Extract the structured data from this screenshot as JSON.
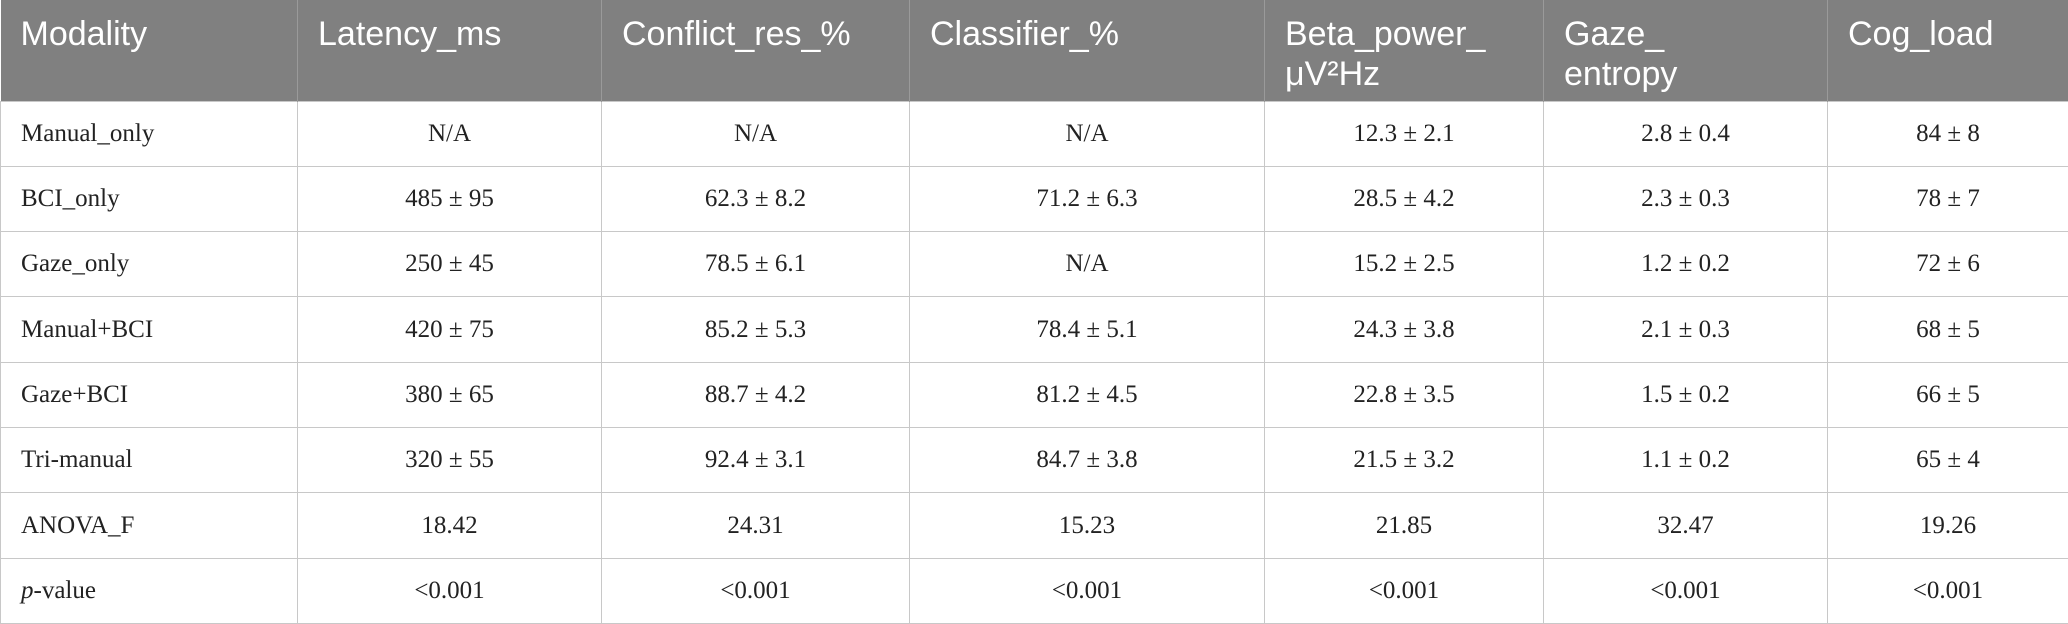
{
  "table": {
    "header": [
      "Modality",
      "Latency_ms",
      "Conflict_res_%",
      "Classifier_%",
      "Beta_power_\nμV²Hz",
      "Gaze_\nentropy",
      "Cog_load"
    ],
    "rows": [
      [
        "Manual_only",
        "N/A",
        "N/A",
        "N/A",
        "12.3 ± 2.1",
        "2.8 ± 0.4",
        "84 ± 8"
      ],
      [
        "BCI_only",
        "485 ± 95",
        "62.3 ± 8.2",
        "71.2 ± 6.3",
        "28.5 ± 4.2",
        "2.3 ± 0.3",
        "78 ± 7"
      ],
      [
        "Gaze_only",
        "250 ± 45",
        "78.5 ± 6.1",
        "N/A",
        "15.2 ± 2.5",
        "1.2 ± 0.2",
        "72 ± 6"
      ],
      [
        "Manual+BCI",
        "420 ± 75",
        "85.2 ± 5.3",
        "78.4 ± 5.1",
        "24.3 ± 3.8",
        "2.1 ± 0.3",
        "68 ± 5"
      ],
      [
        "Gaze+BCI",
        "380 ± 65",
        "88.7 ± 4.2",
        "81.2 ± 4.5",
        "22.8 ± 3.5",
        "1.5 ± 0.2",
        "66 ± 5"
      ],
      [
        "Tri-manual",
        "320 ± 55",
        "92.4 ± 3.1",
        "84.7 ± 3.8",
        "21.5 ± 3.2",
        "1.1 ± 0.2",
        "65 ± 4"
      ],
      [
        "ANOVA_F",
        "18.42",
        "24.31",
        "15.23",
        "21.85",
        "32.47",
        "19.26"
      ],
      [
        "p-value",
        "<0.001",
        "<0.001",
        "<0.001",
        "<0.001",
        "<0.001",
        "<0.001"
      ]
    ]
  }
}
